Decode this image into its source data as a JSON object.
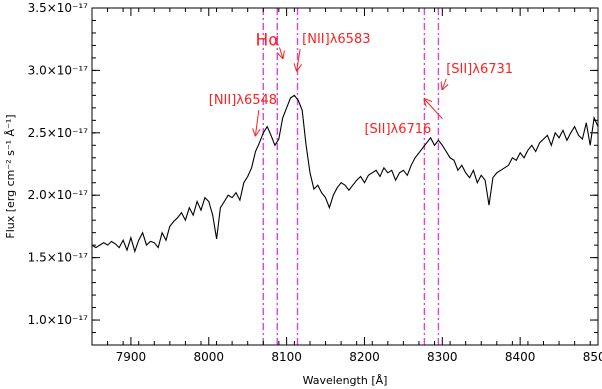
{
  "chart_data": {
    "type": "line",
    "xlabel": "Wavelength [Å]",
    "ylabel": "Flux [erg cm⁻² s⁻¹ Å⁻¹]",
    "xlim": [
      7850,
      8500
    ],
    "ylim": [
      8e-18,
      3.5e-17
    ],
    "x_ticks": [
      7900,
      8000,
      8100,
      8200,
      8300,
      8400,
      8500
    ],
    "x_tick_labels": [
      "7900",
      "8000",
      "8100",
      "8200",
      "8300",
      "8400",
      "8500"
    ],
    "y_ticks": [
      1e-17,
      1.5e-17,
      2e-17,
      2.5e-17,
      3e-17,
      3.5e-17
    ],
    "y_tick_labels": [
      "1.0×10⁻¹⁷",
      "1.5×10⁻¹⁷",
      "2.0×10⁻¹⁷",
      "2.5×10⁻¹⁷",
      "3.0×10⁻¹⁷",
      "3.5×10⁻¹⁷"
    ],
    "series": [
      {
        "color": "#000000",
        "x": [
          7850,
          7855,
          7860,
          7865,
          7870,
          7875,
          7880,
          7885,
          7890,
          7895,
          7900,
          7905,
          7910,
          7915,
          7920,
          7925,
          7930,
          7935,
          7940,
          7945,
          7950,
          7955,
          7960,
          7965,
          7970,
          7975,
          7980,
          7985,
          7990,
          7995,
          8000,
          8005,
          8010,
          8015,
          8020,
          8025,
          8030,
          8035,
          8040,
          8045,
          8050,
          8055,
          8060,
          8065,
          8070,
          8075,
          8080,
          8085,
          8090,
          8095,
          8100,
          8105,
          8110,
          8115,
          8120,
          8125,
          8130,
          8135,
          8140,
          8145,
          8150,
          8155,
          8160,
          8165,
          8170,
          8175,
          8180,
          8185,
          8190,
          8195,
          8200,
          8205,
          8210,
          8215,
          8220,
          8225,
          8230,
          8235,
          8240,
          8245,
          8250,
          8255,
          8260,
          8265,
          8270,
          8275,
          8280,
          8285,
          8290,
          8295,
          8300,
          8305,
          8310,
          8315,
          8320,
          8325,
          8330,
          8335,
          8340,
          8345,
          8350,
          8355,
          8360,
          8365,
          8370,
          8375,
          8380,
          8385,
          8390,
          8395,
          8400,
          8405,
          8410,
          8415,
          8420,
          8425,
          8430,
          8435,
          8440,
          8445,
          8450,
          8455,
          8460,
          8465,
          8470,
          8475,
          8480,
          8485,
          8490,
          8495,
          8500
        ],
        "y": [
          1.6e-17,
          1.58e-17,
          1.6e-17,
          1.62e-17,
          1.6e-17,
          1.63e-17,
          1.61e-17,
          1.58e-17,
          1.64e-17,
          1.56e-17,
          1.66e-17,
          1.55e-17,
          1.64e-17,
          1.7e-17,
          1.6e-17,
          1.63e-17,
          1.62e-17,
          1.58e-17,
          1.7e-17,
          1.64e-17,
          1.75e-17,
          1.79e-17,
          1.82e-17,
          1.86e-17,
          1.8e-17,
          1.9e-17,
          1.84e-17,
          1.95e-17,
          1.88e-17,
          1.98e-17,
          1.95e-17,
          1.84e-17,
          1.65e-17,
          1.9e-17,
          1.95e-17,
          2e-17,
          1.98e-17,
          2.02e-17,
          1.96e-17,
          2.1e-17,
          2.15e-17,
          2.22e-17,
          2.35e-17,
          2.42e-17,
          2.5e-17,
          2.55e-17,
          2.48e-17,
          2.4e-17,
          2.45e-17,
          2.62e-17,
          2.7e-17,
          2.78e-17,
          2.8e-17,
          2.76e-17,
          2.68e-17,
          2.4e-17,
          2.18e-17,
          2.05e-17,
          2.08e-17,
          2.02e-17,
          1.98e-17,
          1.9e-17,
          2e-17,
          2.06e-17,
          2.1e-17,
          2.08e-17,
          2.04e-17,
          2.08e-17,
          2.12e-17,
          2.15e-17,
          2.1e-17,
          2.16e-17,
          2.18e-17,
          2.2e-17,
          2.15e-17,
          2.22e-17,
          2.18e-17,
          2.2e-17,
          2.12e-17,
          2.18e-17,
          2.2e-17,
          2.16e-17,
          2.24e-17,
          2.3e-17,
          2.34e-17,
          2.38e-17,
          2.42e-17,
          2.46e-17,
          2.4e-17,
          2.44e-17,
          2.4e-17,
          2.35e-17,
          2.3e-17,
          2.28e-17,
          2.2e-17,
          2.24e-17,
          2.18e-17,
          2.14e-17,
          2.2e-17,
          2.1e-17,
          2.16e-17,
          2.12e-17,
          1.92e-17,
          2.14e-17,
          2.18e-17,
          2.2e-17,
          2.22e-17,
          2.24e-17,
          2.3e-17,
          2.28e-17,
          2.34e-17,
          2.3e-17,
          2.36e-17,
          2.4e-17,
          2.35e-17,
          2.42e-17,
          2.45e-17,
          2.48e-17,
          2.4e-17,
          2.5e-17,
          2.46e-17,
          2.52e-17,
          2.44e-17,
          2.5e-17,
          2.55e-17,
          2.48e-17,
          2.45e-17,
          2.58e-17,
          2.4e-17,
          2.62e-17,
          2.55e-17
        ]
      }
    ],
    "reference_lines": {
      "color": "#e040e0",
      "style": "dash-dot",
      "x": [
        8070,
        8088,
        8114,
        8277,
        8295
      ]
    },
    "annotations": [
      {
        "text": "Hα",
        "x": 8060,
        "y": 3.2e-17,
        "arrow_to": [
          8095,
          3.1e-17
        ]
      },
      {
        "text": "[NII]λ6583",
        "x": 8120,
        "y": 3.22e-17,
        "arrow_to": [
          8113,
          3e-17
        ]
      },
      {
        "text": "[NII]λ6548",
        "x": 8000,
        "y": 2.73e-17,
        "arrow_to": [
          8060,
          2.48e-17
        ]
      },
      {
        "text": "[SII]λ6716",
        "x": 8200,
        "y": 2.5e-17,
        "arrow_to": [
          8277,
          2.77e-17
        ]
      },
      {
        "text": "[SII]λ6731",
        "x": 8305,
        "y": 2.98e-17,
        "arrow_to": [
          8300,
          2.85e-17
        ]
      }
    ]
  }
}
